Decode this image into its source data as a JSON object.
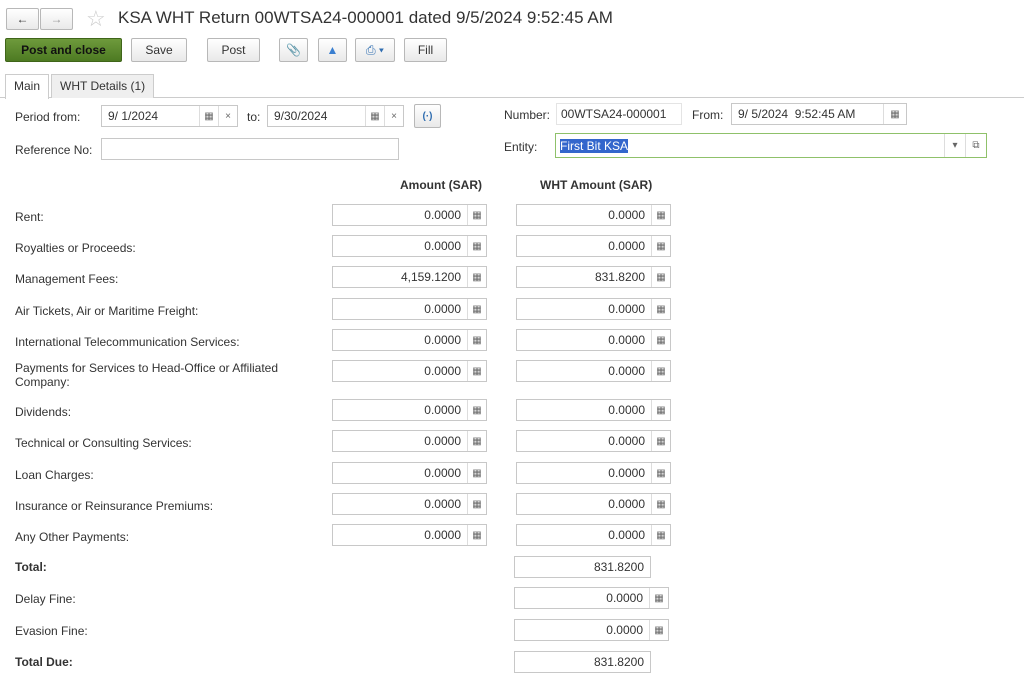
{
  "header": {
    "title": "KSA WHT Return 00WTSA24-000001 dated 9/5/2024 9:52:45 AM"
  },
  "toolbar": {
    "post_and_close": "Post and close",
    "save": "Save",
    "post": "Post",
    "fill": "Fill"
  },
  "tabs": [
    {
      "label": "Main",
      "active": true
    },
    {
      "label": "WHT Details (1)",
      "active": false
    }
  ],
  "form": {
    "period_from_label": "Period from:",
    "period_from": "9/ 1/2024",
    "to_label": "to:",
    "period_to": "9/30/2024",
    "number_label": "Number:",
    "number": "00WTSA24-000001",
    "from_label": "From:",
    "from": "9/ 5/2024  9:52:45 AM",
    "reference_label": "Reference No:",
    "reference": "",
    "entity_label": "Entity:",
    "entity": "First Bit KSA"
  },
  "columns": {
    "amount": "Amount (SAR)",
    "wht": "WHT Amount (SAR)"
  },
  "rows": [
    {
      "label": "Rent:",
      "amount": "0.0000",
      "wht": "0.0000"
    },
    {
      "label": "Royalties or Proceeds:",
      "amount": "0.0000",
      "wht": "0.0000"
    },
    {
      "label": "Management Fees:",
      "amount": "4,159.1200",
      "wht": "831.8200"
    },
    {
      "label": "Air Tickets, Air or Maritime Freight:",
      "amount": "0.0000",
      "wht": "0.0000"
    },
    {
      "label": "International Telecommunication Services:",
      "amount": "0.0000",
      "wht": "0.0000"
    },
    {
      "label": "Payments for Services to Head-Office or Affiliated Company:",
      "amount": "0.0000",
      "wht": "0.0000"
    },
    {
      "label": "Dividends:",
      "amount": "0.0000",
      "wht": "0.0000"
    },
    {
      "label": "Technical or Consulting Services:",
      "amount": "0.0000",
      "wht": "0.0000"
    },
    {
      "label": "Loan Charges:",
      "amount": "0.0000",
      "wht": "0.0000"
    },
    {
      "label": "Insurance or Reinsurance Premiums:",
      "amount": "0.0000",
      "wht": "0.0000"
    },
    {
      "label": "Any Other Payments:",
      "amount": "0.0000",
      "wht": "0.0000"
    }
  ],
  "totals": {
    "total_label": "Total:",
    "total": "831.8200",
    "delay_label": "Delay Fine:",
    "delay": "0.0000",
    "evasion_label": "Evasion Fine:",
    "evasion": "0.0000",
    "due_label": "Total Due:",
    "due": "831.8200"
  },
  "colors": {
    "accent": "#5a8a2c",
    "focus": "#8fc16a",
    "selection": "#3366cc"
  }
}
